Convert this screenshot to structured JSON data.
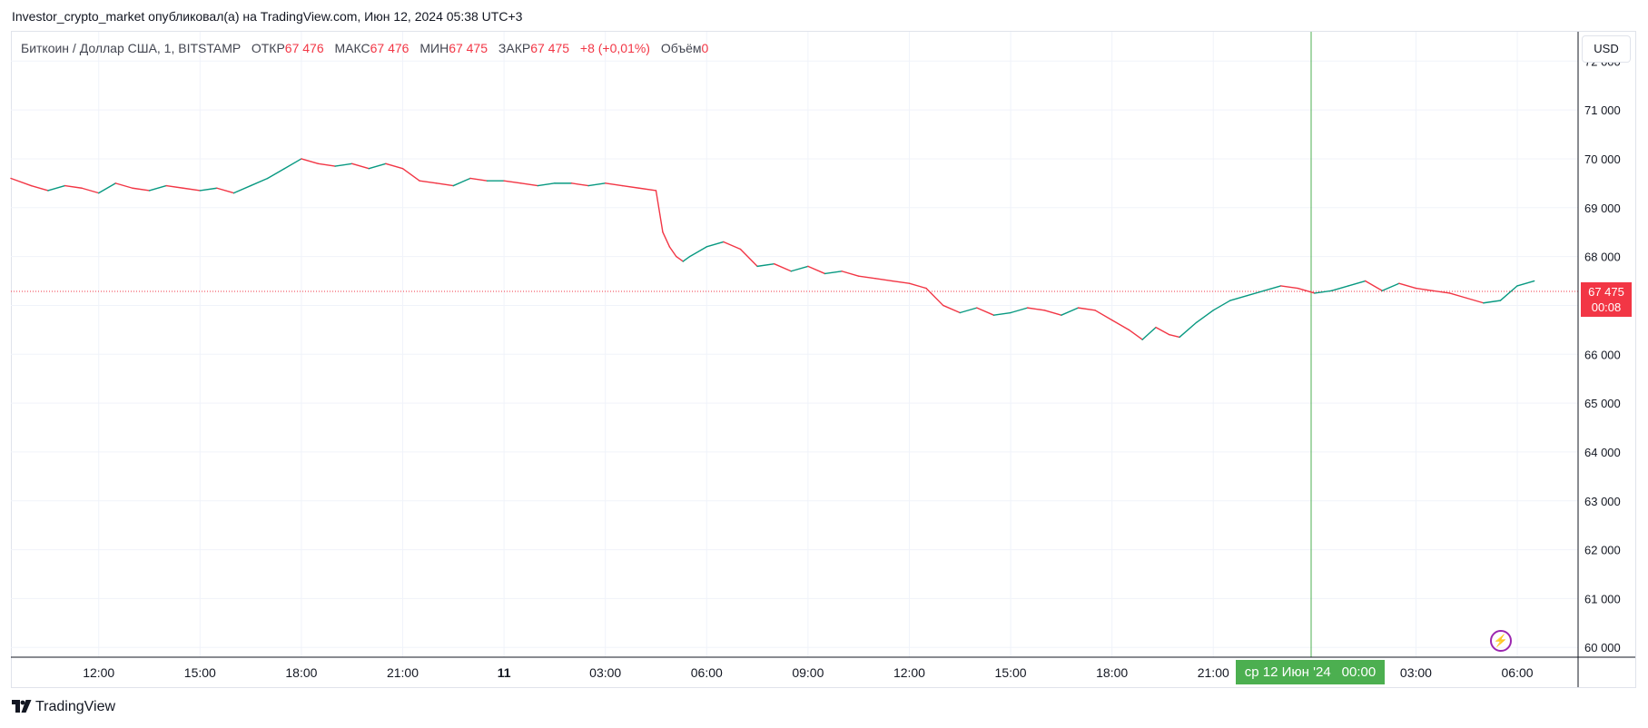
{
  "header": {
    "published_by": "Investor_crypto_market опубликовал(а) на TradingView.com, Июн 12, 2024 05:38 UTC+3"
  },
  "legend": {
    "symbol": "Биткоин / Доллар США, 1, BITSTAMP",
    "open_label": "ОТКР",
    "open_value": "67 476",
    "high_label": "МАКС",
    "high_value": "67 476",
    "low_label": "МИН",
    "low_value": "67 475",
    "close_label": "ЗАКР",
    "close_value": "67 475",
    "change": "+8 (+0,01%)",
    "volume_label": "Объём",
    "volume_value": "0"
  },
  "currency_button": "USD",
  "last_price_tag": {
    "price": "67 475",
    "countdown": "00:08"
  },
  "crosshair_tag": {
    "date": "ср 12 Июн '24",
    "time": "00:00"
  },
  "footer": {
    "brand": "TradingView"
  },
  "icons": {
    "logo": "tradingview-logo-icon",
    "bolt": "lightning-icon"
  },
  "colors": {
    "up": "#089981",
    "down": "#f23645",
    "crosshair": "#4caf50",
    "grid": "#f0f3fa",
    "price_line": "#f23645",
    "bolt": "#9c27b0"
  },
  "chart_data": {
    "type": "line",
    "title": "Биткоин / Доллар США, 1, BITSTAMP",
    "xlabel": "",
    "ylabel": "",
    "ylim": [
      59800,
      72600
    ],
    "y_ticks": [
      60000,
      61000,
      62000,
      63000,
      64000,
      65000,
      66000,
      67000,
      68000,
      69000,
      70000,
      71000,
      72000
    ],
    "y_tick_labels": [
      "60 000",
      "61 000",
      "62 000",
      "63 000",
      "64 000",
      "65 000",
      "66 000",
      "67 000",
      "68 000",
      "69 000",
      "70 000",
      "71 000",
      "72 000"
    ],
    "x_tick_labels": [
      "12:00",
      "15:00",
      "18:00",
      "21:00",
      "11",
      "03:00",
      "06:00",
      "09:00",
      "12:00",
      "15:00",
      "18:00",
      "21:00",
      "03:00",
      "06:00"
    ],
    "x_tick_hours": [
      12,
      15,
      18,
      21,
      24,
      27,
      30,
      33,
      36,
      39,
      42,
      45,
      51,
      54
    ],
    "xlim_hours": [
      9.4,
      55.8
    ],
    "last_price": 67475,
    "crosshair_hour": 48,
    "grid": true,
    "series": [
      {
        "x": [
          9.4,
          10.0,
          10.5,
          11.0,
          11.5,
          12.0,
          12.5,
          13.0,
          13.5,
          14.0,
          14.5,
          15.0,
          15.5,
          16.0,
          16.5,
          17.0,
          17.5,
          18.0,
          18.5,
          19.0,
          19.5,
          20.0,
          20.5,
          21.0,
          21.5,
          22.0,
          22.5,
          23.0,
          23.5,
          24.0,
          24.5,
          25.0,
          25.5,
          26.0,
          26.5,
          27.0,
          27.5,
          28.0,
          28.5,
          28.7,
          28.9,
          29.1,
          29.3,
          29.5,
          30.0,
          30.5,
          31.0,
          31.5,
          32.0,
          32.5,
          33.0,
          33.5,
          34.0,
          34.5,
          35.0,
          35.5,
          36.0,
          36.5,
          37.0,
          37.5,
          38.0,
          38.5,
          39.0,
          39.5,
          40.0,
          40.5,
          41.0,
          41.5,
          42.0,
          42.5,
          42.9,
          43.3,
          43.7,
          44.0,
          44.5,
          45.0,
          45.5,
          46.0,
          46.5,
          47.0,
          47.5,
          48.0,
          48.5,
          49.0,
          49.5,
          50.0,
          50.5,
          51.0,
          51.5,
          52.0,
          52.5,
          53.0,
          53.5,
          54.0,
          54.5
        ],
        "values": [
          69600,
          69450,
          69350,
          69450,
          69400,
          69300,
          69500,
          69400,
          69350,
          69450,
          69400,
          69350,
          69400,
          69300,
          69450,
          69600,
          69800,
          70000,
          69900,
          69850,
          69900,
          69800,
          69900,
          69800,
          69550,
          69500,
          69450,
          69600,
          69550,
          69550,
          69500,
          69450,
          69500,
          69500,
          69450,
          69500,
          69450,
          69400,
          69350,
          68500,
          68200,
          68000,
          67900,
          68000,
          68200,
          68300,
          68150,
          67800,
          67850,
          67700,
          67800,
          67650,
          67700,
          67600,
          67550,
          67500,
          67450,
          67350,
          67000,
          66850,
          66950,
          66800,
          66850,
          66950,
          66900,
          66800,
          66950,
          66900,
          66700,
          66500,
          66300,
          66550,
          66400,
          66350,
          66650,
          66900,
          67100,
          67200,
          67300,
          67400,
          67350,
          67250,
          67300,
          67400,
          67500,
          67300,
          67450,
          67350,
          67300,
          67250,
          67150,
          67050,
          67100,
          67400,
          67500
        ]
      }
    ]
  }
}
